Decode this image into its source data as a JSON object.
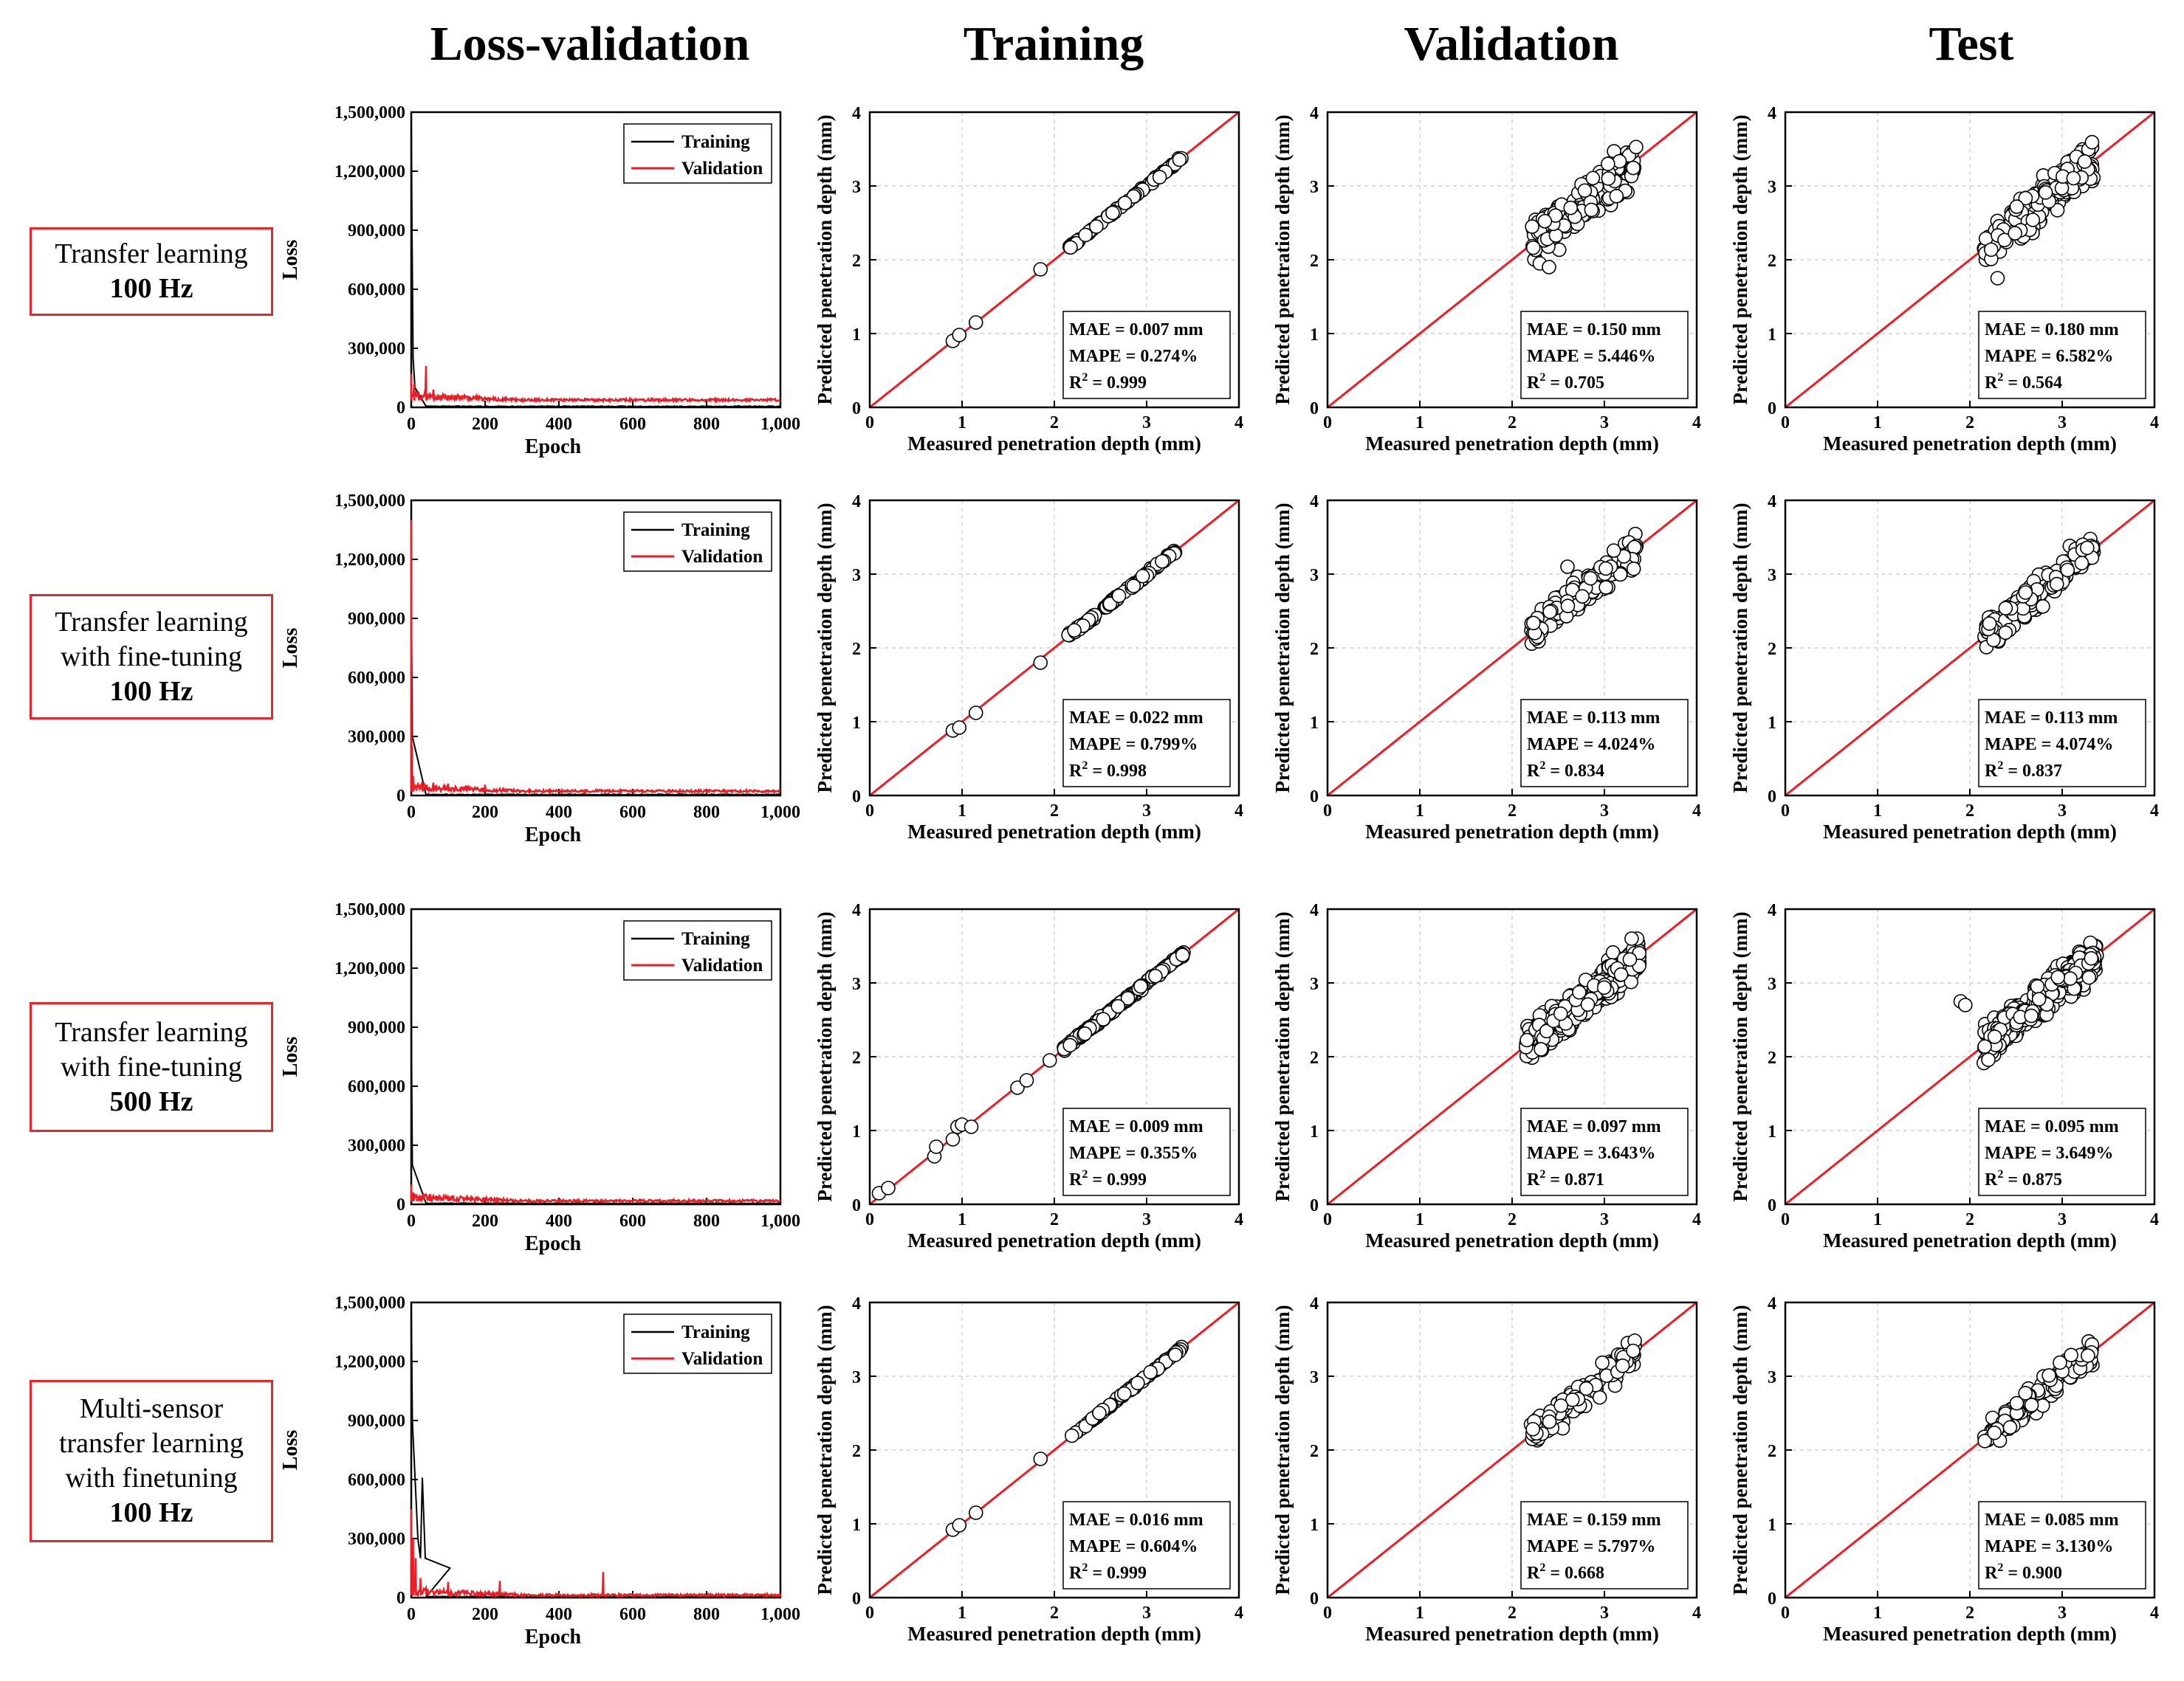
{
  "column_titles": [
    "Loss-validation",
    "Training",
    "Validation",
    "Test"
  ],
  "rows": [
    {
      "label_lines": [
        "Transfer learning"
      ],
      "hz": "100 Hz"
    },
    {
      "label_lines": [
        "Transfer learning",
        "with fine-tuning"
      ],
      "hz": "100 Hz"
    },
    {
      "label_lines": [
        "Transfer learning",
        "with fine-tuning"
      ],
      "hz": "500 Hz"
    },
    {
      "label_lines": [
        "Multi-sensor",
        "transfer learning",
        "with finetuning"
      ],
      "hz": "100 Hz"
    }
  ],
  "colors": {
    "training": "#000000",
    "validation": "#ee1c25",
    "identity": "#ee1c25",
    "grid": "#c8c8c8"
  },
  "chart_data": {
    "loss": {
      "type": "line",
      "xlabel": "Epoch",
      "ylabel": "Loss",
      "xlim": [
        0,
        1000
      ],
      "ylim": [
        0,
        1500000
      ],
      "xticks": [
        0,
        200,
        400,
        600,
        800,
        1000
      ],
      "xtick_labels": [
        "0",
        "200",
        "400",
        "600",
        "800",
        "1,000"
      ],
      "yticks": [
        0,
        300000,
        600000,
        900000,
        1200000,
        1500000
      ],
      "ytick_labels": [
        "0",
        "300,000",
        "600,000",
        "900,000",
        "1,200,000",
        "1,500,000"
      ],
      "legend": [
        "Training",
        "Validation"
      ],
      "legend_position": "top-right",
      "panels": [
        {
          "training_spikes": [
            [
              0,
              1500000
            ],
            [
              2,
              900000
            ],
            [
              5,
              250000
            ],
            [
              10,
              100000
            ]
          ],
          "validation_spikes": [
            [
              0,
              170000
            ],
            [
              8,
              120000
            ],
            [
              20,
              80000
            ],
            [
              40,
              210000
            ],
            [
              60,
              90000
            ],
            [
              80,
              60000
            ],
            [
              120,
              50000
            ]
          ],
          "validation_floor": 35000
        },
        {
          "training_spikes": [
            [
              0,
              1500000
            ],
            [
              1,
              800000
            ],
            [
              3,
              300000
            ]
          ],
          "validation_spikes": [
            [
              0,
              1400000
            ],
            [
              2,
              250000
            ],
            [
              5,
              100000
            ],
            [
              30,
              70000
            ],
            [
              60,
              65000
            ],
            [
              100,
              60000
            ],
            [
              150,
              50000
            ],
            [
              200,
              55000
            ],
            [
              250,
              40000
            ]
          ],
          "validation_floor": 20000
        },
        {
          "training_spikes": [
            [
              0,
              1500000
            ],
            [
              1,
              700000
            ],
            [
              3,
              200000
            ]
          ],
          "validation_spikes": [
            [
              0,
              100000
            ],
            [
              5,
              60000
            ],
            [
              15,
              40000
            ],
            [
              50,
              30000
            ],
            [
              100,
              25000
            ]
          ],
          "validation_floor": 15000
        },
        {
          "training_spikes": [
            [
              0,
              1500000
            ],
            [
              3,
              900000
            ],
            [
              10,
              620000
            ],
            [
              18,
              300000
            ],
            [
              25,
              200000
            ],
            [
              30,
              610000
            ],
            [
              38,
              200000
            ],
            [
              105,
              150000
            ]
          ],
          "validation_spikes": [
            [
              0,
              450000
            ],
            [
              5,
              300000
            ],
            [
              12,
              200000
            ],
            [
              25,
              100000
            ],
            [
              40,
              50000
            ],
            [
              100,
              80000
            ],
            [
              240,
              85000
            ],
            [
              520,
              130000
            ]
          ],
          "validation_floor": 10000
        }
      ]
    },
    "parity": {
      "type": "scatter",
      "xlabel": "Measured penetration depth (mm)",
      "ylabel": "Predicted penetration depth (mm)",
      "xlim": [
        0,
        4
      ],
      "ylim": [
        0,
        4
      ],
      "ticks": [
        0,
        1,
        2,
        3,
        4
      ],
      "identity_line": [
        [
          0,
          0
        ],
        [
          4,
          4
        ]
      ],
      "grid": true,
      "panels": [
        [
          {
            "MAE": "MAE = 0.007 mm",
            "MAPE": "MAPE = 0.274%",
            "R2": "0.999",
            "x_range": [
              2.15,
              3.38
            ],
            "spread": 0.03,
            "n": 80,
            "outliers": [
              [
                0.9,
                0.9
              ],
              [
                0.97,
                0.98
              ],
              [
                1.15,
                1.15
              ],
              [
                1.85,
                1.87
              ]
            ],
            "seed": 11
          },
          {
            "MAE": "MAE = 0.150 mm",
            "MAPE": "MAPE = 5.446%",
            "R2": "0.705",
            "x_range": [
              2.2,
              3.35
            ],
            "spread": 0.45,
            "n": 160,
            "outliers": [
              [
                2.3,
                1.95
              ],
              [
                2.4,
                1.9
              ]
            ],
            "seed": 12
          },
          {
            "MAE": "MAE = 0.180 mm",
            "MAPE": "MAPE = 6.582%",
            "R2": "0.564",
            "x_range": [
              2.15,
              3.35
            ],
            "spread": 0.5,
            "n": 160,
            "outliers": [
              [
                2.3,
                1.75
              ]
            ],
            "seed": 13
          }
        ],
        [
          {
            "MAE": "MAE = 0.022 mm",
            "MAPE": "MAPE = 0.799%",
            "R2": "0.998",
            "x_range": [
              2.15,
              3.38
            ],
            "spread": 0.05,
            "n": 100,
            "outliers": [
              [
                0.9,
                0.88
              ],
              [
                0.97,
                0.92
              ],
              [
                1.15,
                1.12
              ],
              [
                1.85,
                1.8
              ]
            ],
            "seed": 21
          },
          {
            "MAE": "MAE = 0.113 mm",
            "MAPE": "MAPE = 4.024%",
            "R2": "0.834",
            "x_range": [
              2.2,
              3.35
            ],
            "spread": 0.32,
            "n": 150,
            "outliers": [
              [
                2.6,
                3.1
              ]
            ],
            "seed": 22
          },
          {
            "MAE": "MAE = 0.113 mm",
            "MAPE": "MAPE = 4.074%",
            "R2": "0.837",
            "x_range": [
              2.15,
              3.35
            ],
            "spread": 0.32,
            "n": 160,
            "outliers": [],
            "seed": 23
          }
        ],
        [
          {
            "MAE": "MAE = 0.009 mm",
            "MAPE": "MAPE = 0.355%",
            "R2": "0.999",
            "x_range": [
              2.1,
              3.4
            ],
            "spread": 0.05,
            "n": 170,
            "outliers": [
              [
                0.1,
                0.15
              ],
              [
                0.2,
                0.22
              ],
              [
                0.7,
                0.65
              ],
              [
                0.72,
                0.78
              ],
              [
                0.9,
                0.88
              ],
              [
                0.95,
                1.05
              ],
              [
                1.0,
                1.08
              ],
              [
                1.1,
                1.05
              ],
              [
                1.6,
                1.58
              ],
              [
                1.7,
                1.68
              ],
              [
                1.95,
                1.95
              ]
            ],
            "seed": 31
          },
          {
            "MAE": "MAE = 0.097 mm",
            "MAPE": "MAPE = 3.643%",
            "R2": "0.871",
            "x_range": [
              2.15,
              3.38
            ],
            "spread": 0.35,
            "n": 420,
            "outliers": [],
            "seed": 32
          },
          {
            "MAE": "MAE = 0.095 mm",
            "MAPE": "MAPE = 3.649%",
            "R2": "0.875",
            "x_range": [
              2.15,
              3.38
            ],
            "spread": 0.35,
            "n": 420,
            "outliers": [
              [
                1.9,
                2.75
              ],
              [
                1.95,
                2.7
              ]
            ],
            "seed": 33
          }
        ],
        [
          {
            "MAE": "MAE = 0.016 mm",
            "MAPE": "MAPE = 0.604%",
            "R2": "0.999",
            "x_range": [
              2.15,
              3.38
            ],
            "spread": 0.03,
            "n": 80,
            "outliers": [
              [
                0.9,
                0.92
              ],
              [
                0.97,
                0.98
              ],
              [
                1.15,
                1.15
              ],
              [
                1.85,
                1.88
              ]
            ],
            "seed": 41
          },
          {
            "MAE": "MAE = 0.159 mm",
            "MAPE": "MAPE = 5.797%",
            "R2": "0.668",
            "x_range": [
              2.2,
              3.35
            ],
            "spread": 0.3,
            "n": 110,
            "outliers": [],
            "seed": 42
          },
          {
            "MAE": "MAE = 0.085 mm",
            "MAPE": "MAPE = 3.130%",
            "R2": "0.900",
            "x_range": [
              2.15,
              3.35
            ],
            "spread": 0.28,
            "n": 120,
            "outliers": [],
            "seed": 43
          }
        ]
      ]
    }
  }
}
